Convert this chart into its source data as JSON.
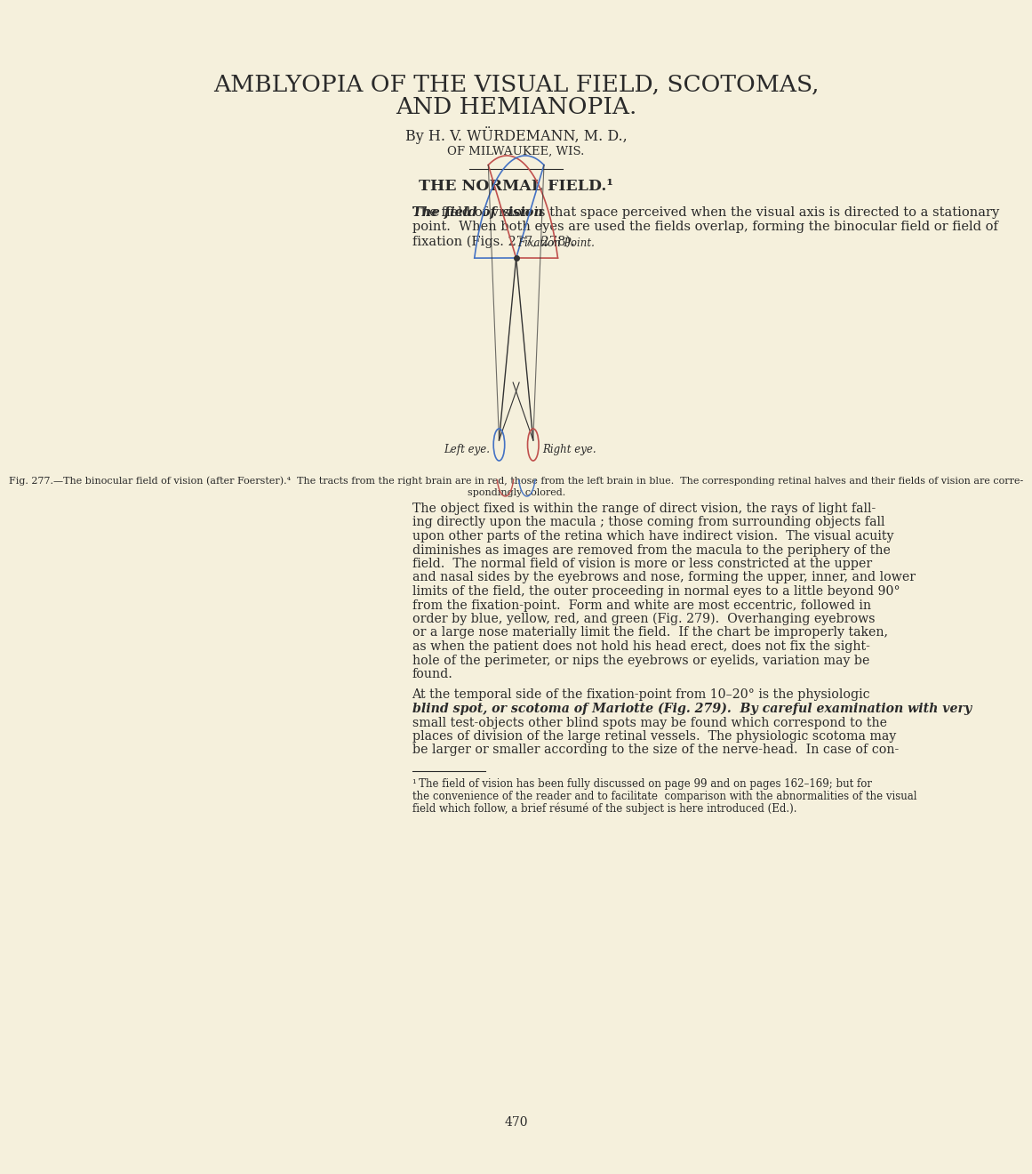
{
  "bg_color": "#f5f0dc",
  "text_color": "#2a2a2a",
  "title_line1": "AMBLYOPIA OF THE VISUAL FIELD, SCOTOMAS,",
  "title_line2": "AND HEMIANOPIA.",
  "author": "By H. V. WÜRDEMANN, M. D.,",
  "location": "OF MILWAUKEE, WIS.",
  "section_title": "THE NORMAL FIELD.¹",
  "para1_bold": "The field of vision",
  "para1_rest": " is that space perceived when the visual axis is directed to a stationary point.  When both eyes are used the fields overlap, forming the binocular field or field of fixation (Figs. 277, 278).",
  "fig_label": "Fixation Point.",
  "left_eye_label": "Left eye.",
  "right_eye_label": "Right eye.",
  "caption": "Fig. 277.—The binocular field of vision (after Foerster).⁴  The tracts from the right brain are in red, those from the left brain in blue.  The corresponding retinal halves and their fields of vision are corre-\nspondingly colored.",
  "para2": "The object fixed is within the range of direct vision, the rays of light fall-\ning directly upon the macula ; those coming from surrounding objects fall\nupon other parts of the retina which have indirect vision.  The visual acuity\ndiminishes as images are removed from the macula to the periphery of the\nfield.  The normal field of vision is more or less constricted at the upper\nand nasal sides by the eyebrows and nose, forming the upper, inner, and lower\nlimits of the field, the outer proceeding in normal eyes to a little beyond 90°\nfrom the fixation-point.  Form and white are most eccentric, followed in\norder by blue, yellow, red, and green (Fig. 279).  Overhanging eyebrows\nor a large nose materially limit the field.  If the chart be improperly taken,\nas when the patient does not hold his head erect, does not fix the sight-\nhole of the perimeter, or nips the eyebrows or eyelids, variation may be\nfound.",
  "para3": "At the temporal side of the fixation-point from 10–20° is the physiologic\nblind spot, or scotoma of Mariotte (Fig. 279).  By careful examination with very\nsmall test-objects other blind spots may be found which correspond to the\nplaces of division of the large retinal vessels.  The physiologic scotoma may\nbe larger or smaller according to the size of the nerve-head.  In case of con-",
  "footnote": "¹ The field of vision has been fully discussed on page 99 and on pages 162–169; but for the convenience of the reader and to facilitate  comparison with the abnormalities of the visual field which follow, a brief résumé of the subject is here introduced (Ed.).",
  "page_number": "470",
  "red_color": "#c0504d",
  "blue_color": "#4472c4",
  "line_color": "#333333"
}
